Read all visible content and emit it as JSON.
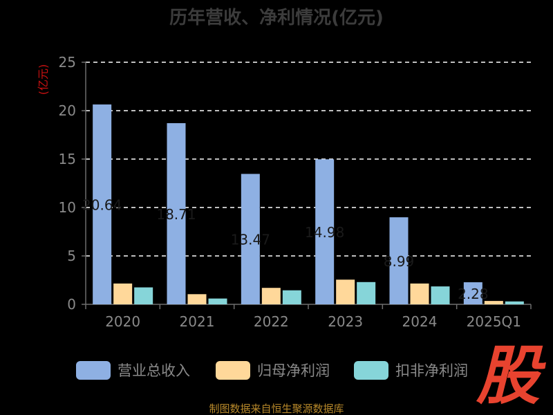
{
  "chart_data": {
    "type": "bar",
    "title": "历年营收、净利情况(亿元)",
    "unit_label": "(亿元)",
    "categories": [
      "2020",
      "2021",
      "2022",
      "2023",
      "2024",
      "2025Q1"
    ],
    "series": [
      {
        "name": "营业总收入",
        "color": "#8eb0e3",
        "values": [
          20.64,
          18.71,
          13.47,
          14.98,
          8.99,
          2.28
        ]
      },
      {
        "name": "归母净利润",
        "color": "#ffd89a",
        "values": [
          2.15,
          1.05,
          1.7,
          2.55,
          2.15,
          0.35
        ]
      },
      {
        "name": "扣非净利润",
        "color": "#86d5d9",
        "values": [
          1.75,
          0.6,
          1.45,
          2.3,
          1.85,
          0.3
        ]
      }
    ],
    "data_labels": [
      "20.64",
      "18.71",
      "13.47",
      "14.98",
      "8.99",
      "2.28"
    ],
    "ylim": [
      0,
      25
    ],
    "yticks": [
      0,
      5,
      10,
      15,
      20,
      25
    ],
    "grid": true,
    "legend_position": "bottom"
  },
  "watermark": "股",
  "source": "制图数据来自恒生聚源数据库"
}
